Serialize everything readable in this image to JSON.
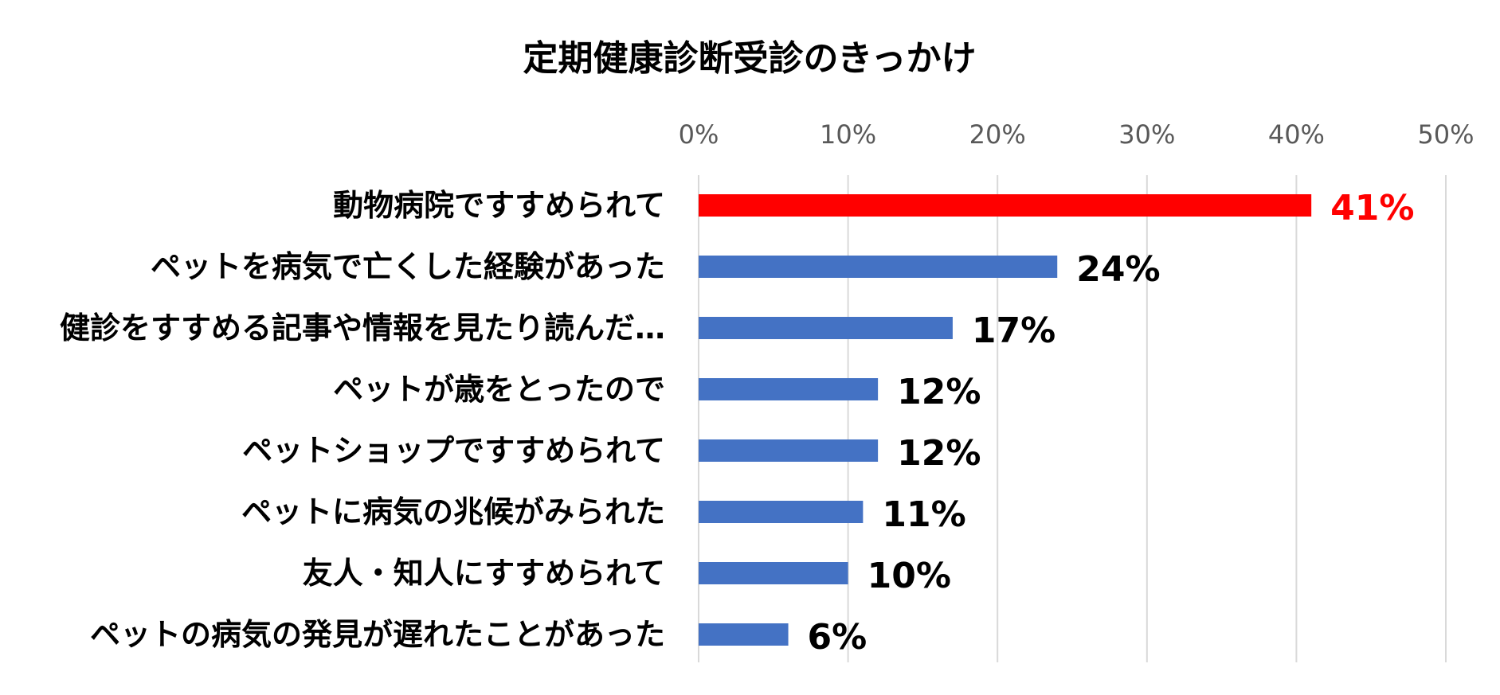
{
  "chart_data": {
    "type": "bar",
    "orientation": "horizontal",
    "title": "定期健康診断受診のきっかけ",
    "xlabel": "",
    "ylabel": "",
    "xlim": [
      0,
      50
    ],
    "x_ticks": [
      "0%",
      "10%",
      "20%",
      "30%",
      "40%",
      "50%"
    ],
    "x_axis_position": "top",
    "grid": true,
    "legend": "none",
    "categories": [
      "動物病院ですすめられて",
      "ペットを病気で亡くした経験があった",
      "健診をすすめる記事や情報を見たり読んだ…",
      "ペットが歳をとったので",
      "ペットショップですすめられて",
      "ペットに病気の兆候がみられた",
      "友人・知人にすすめられて",
      "ペットの病気の発見が遅れたことがあった"
    ],
    "values": [
      41,
      24,
      17,
      12,
      12,
      11,
      10,
      6
    ],
    "data_labels": [
      "41%",
      "24%",
      "17%",
      "12%",
      "12%",
      "11%",
      "10%",
      "6%"
    ],
    "highlight_index": 0,
    "colors": {
      "highlight": "#ff0000",
      "bar": "#4472c4",
      "label": "#000000",
      "highlight_label": "#ff0000",
      "grid": "#d9d9d9",
      "tick_label": "#595959"
    }
  }
}
